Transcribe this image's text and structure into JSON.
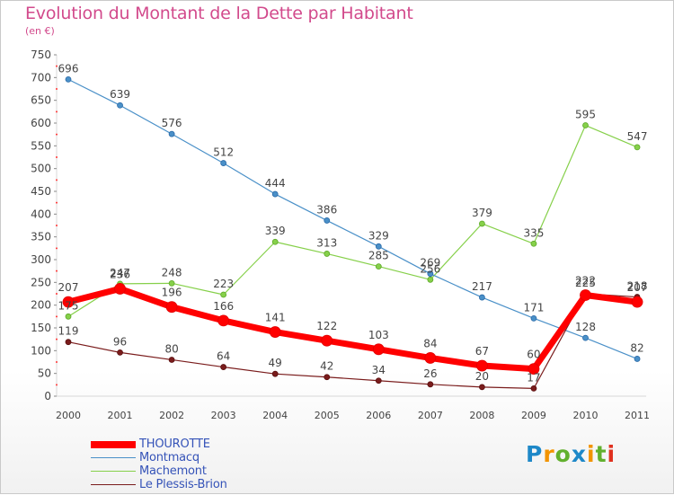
{
  "title": "Evolution du Montant de la Dette par Habitant",
  "subtitle": "(en €)",
  "brand": {
    "letters": [
      "P",
      "r",
      "o",
      "x",
      "i",
      "t",
      "i"
    ],
    "colors": [
      "#1e88c8",
      "#f29400",
      "#62b02e",
      "#1e88c8",
      "#f29400",
      "#62b02e",
      "#e0301e"
    ]
  },
  "chart_data": {
    "type": "line",
    "x": [
      "2000",
      "2001",
      "2002",
      "2003",
      "2004",
      "2005",
      "2006",
      "2007",
      "2008",
      "2009",
      "2010",
      "2011"
    ],
    "ylim": [
      0,
      750
    ],
    "yticks": [
      0,
      50,
      100,
      150,
      200,
      250,
      300,
      350,
      400,
      450,
      500,
      550,
      600,
      650,
      700,
      750
    ],
    "grid": false,
    "legend_position": "bottom-left",
    "series": [
      {
        "name": "THOUROTTE",
        "color": "#ff0000",
        "values": [
          207,
          236,
          196,
          166,
          141,
          122,
          103,
          84,
          67,
          60,
          222,
          207
        ]
      },
      {
        "name": "Montmacq",
        "color": "#4a90c8",
        "values": [
          696,
          639,
          576,
          512,
          444,
          386,
          329,
          269,
          217,
          171,
          128,
          82
        ]
      },
      {
        "name": "Machemont",
        "color": "#86d04a",
        "values": [
          175,
          247,
          248,
          223,
          339,
          313,
          285,
          256,
          379,
          335,
          595,
          547
        ]
      },
      {
        "name": "Le Plessis-Brion",
        "color": "#7a1c1c",
        "values": [
          119,
          96,
          80,
          64,
          49,
          42,
          34,
          26,
          20,
          17,
          225,
          218
        ]
      }
    ]
  }
}
